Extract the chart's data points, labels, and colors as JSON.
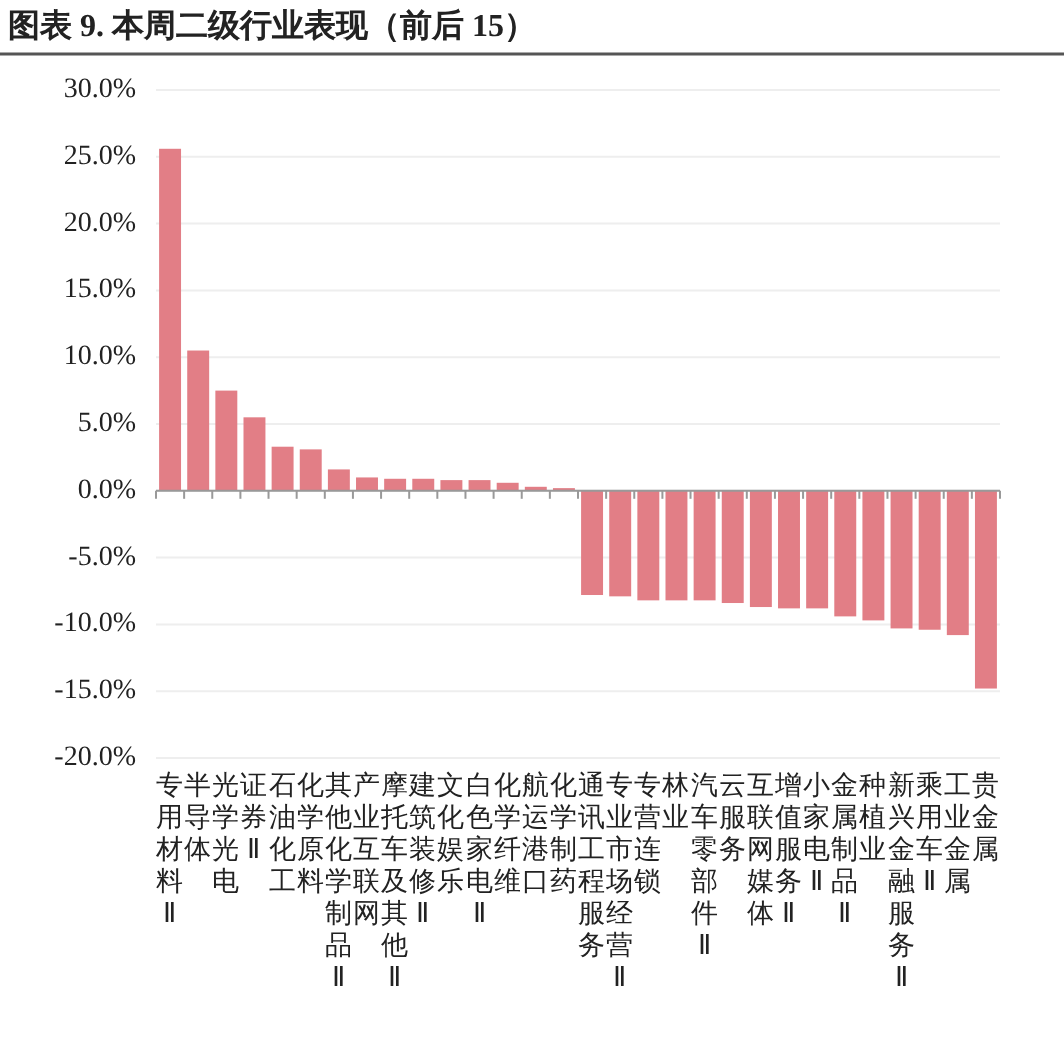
{
  "chart_data": {
    "type": "bar",
    "title": "图表 9. 本周二级行业表现（前后 15）",
    "categories": [
      "专用材料Ⅱ",
      "半导体",
      "光学光电",
      "证券Ⅱ",
      "石油化工",
      "化学原料",
      "其他化学制品Ⅱ",
      "产业互联网",
      "摩托车及其他Ⅱ",
      "建筑装修Ⅱ",
      "文化娱乐",
      "白色家电Ⅱ",
      "化学纤维",
      "航运港口",
      "化学制药",
      "通讯工程服务",
      "专业市场经营Ⅱ",
      "专营连锁",
      "林业",
      "汽车零部件Ⅱ",
      "云服务",
      "互联网媒体",
      "增值服务Ⅱ",
      "小家电Ⅱ",
      "金属制品Ⅱ",
      "种植业",
      "新兴金融服务Ⅱ",
      "乘用车Ⅱ",
      "工业金属",
      "贵金属"
    ],
    "values": [
      25.6,
      10.5,
      7.5,
      5.5,
      3.3,
      3.1,
      1.6,
      1.0,
      0.9,
      0.9,
      0.8,
      0.8,
      0.6,
      0.3,
      0.2,
      -7.8,
      -7.9,
      -8.2,
      -8.2,
      -8.2,
      -8.4,
      -8.7,
      -8.8,
      -8.8,
      -9.4,
      -9.7,
      -10.3,
      -10.4,
      -10.8,
      -14.8
    ],
    "color": "#e27e86",
    "ylim": [
      -20,
      30
    ],
    "yticks": [
      {
        "value": 30,
        "label": "30.0%"
      },
      {
        "value": 25,
        "label": "25.0%"
      },
      {
        "value": 20,
        "label": "20.0%"
      },
      {
        "value": 15,
        "label": "15.0%"
      },
      {
        "value": 10,
        "label": "10.0%"
      },
      {
        "value": 5,
        "label": "5.0%"
      },
      {
        "value": 0,
        "label": "0.0%"
      },
      {
        "value": -5,
        "label": "-5.0%"
      },
      {
        "value": -10,
        "label": "-10.0%"
      },
      {
        "value": -15,
        "label": "-15.0%"
      },
      {
        "value": -20,
        "label": "-20.0%"
      }
    ],
    "grid": "y"
  }
}
